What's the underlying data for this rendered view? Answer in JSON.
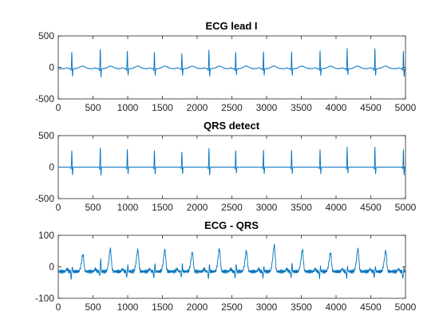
{
  "colors": {
    "trace": "#0072bd",
    "axis": "#262626",
    "background": "#ffffff"
  },
  "chart_data": [
    {
      "type": "line",
      "title": "ECG lead I",
      "xlabel": "",
      "ylabel": "",
      "xlim": [
        0,
        5000
      ],
      "ylim": [
        -500,
        500
      ],
      "xticks": [
        0,
        500,
        1000,
        1500,
        2000,
        2500,
        3000,
        3500,
        4000,
        4500,
        5000
      ],
      "yticks": [
        -500,
        0,
        500
      ],
      "grid": false,
      "legend": "none",
      "baseline": -20,
      "beats": [
        {
          "x": 195,
          "r": 270,
          "s": -130
        },
        {
          "x": 605,
          "r": 320,
          "s": -140
        },
        {
          "x": 995,
          "r": 290,
          "s": -110
        },
        {
          "x": 1385,
          "r": 270,
          "s": -115
        },
        {
          "x": 1780,
          "r": 240,
          "s": -110
        },
        {
          "x": 2170,
          "r": 300,
          "s": -130
        },
        {
          "x": 2555,
          "r": 270,
          "s": -100
        },
        {
          "x": 2955,
          "r": 280,
          "s": -110
        },
        {
          "x": 3360,
          "r": 270,
          "s": -110
        },
        {
          "x": 3770,
          "r": 280,
          "s": -110
        },
        {
          "x": 4160,
          "r": 320,
          "s": -100
        },
        {
          "x": 4560,
          "r": 320,
          "s": -110
        },
        {
          "x": 4970,
          "r": 280,
          "s": -130
        }
      ],
      "t_wave": {
        "offset": 150,
        "amplitude": 40,
        "width": 40
      }
    },
    {
      "type": "line",
      "title": "QRS detect",
      "xlabel": "",
      "ylabel": "",
      "xlim": [
        0,
        5000
      ],
      "ylim": [
        -500,
        500
      ],
      "xticks": [
        0,
        500,
        1000,
        1500,
        2000,
        2500,
        3000,
        3500,
        4000,
        4500,
        5000
      ],
      "yticks": [
        -500,
        0,
        500
      ],
      "grid": false,
      "legend": "none",
      "baseline": 0,
      "beats": [
        {
          "x": 195,
          "r": 270,
          "s": -130
        },
        {
          "x": 605,
          "r": 320,
          "s": -140
        },
        {
          "x": 995,
          "r": 290,
          "s": -110
        },
        {
          "x": 1385,
          "r": 270,
          "s": -115
        },
        {
          "x": 1780,
          "r": 240,
          "s": -110
        },
        {
          "x": 2170,
          "r": 300,
          "s": -130
        },
        {
          "x": 2555,
          "r": 270,
          "s": -100
        },
        {
          "x": 2955,
          "r": 280,
          "s": -110
        },
        {
          "x": 3360,
          "r": 270,
          "s": -110
        },
        {
          "x": 3770,
          "r": 280,
          "s": -110
        },
        {
          "x": 4160,
          "r": 320,
          "s": -100
        },
        {
          "x": 4560,
          "r": 320,
          "s": -110
        },
        {
          "x": 4970,
          "r": 280,
          "s": -130
        }
      ]
    },
    {
      "type": "line",
      "title": "ECG - QRS",
      "xlabel": "",
      "ylabel": "",
      "xlim": [
        0,
        5000
      ],
      "ylim": [
        -100,
        100
      ],
      "xticks": [
        0,
        500,
        1000,
        1500,
        2000,
        2500,
        3000,
        3500,
        4000,
        4500,
        5000
      ],
      "yticks": [
        -100,
        0,
        100
      ],
      "grid": false,
      "legend": "none",
      "baseline": -15,
      "residuals": [
        {
          "x": 195,
          "dip": -25,
          "peak": 15
        },
        {
          "x": 605,
          "dip": -15,
          "peak": 40
        },
        {
          "x": 995,
          "dip": -20,
          "peak": 20
        },
        {
          "x": 1385,
          "dip": -20,
          "peak": 25
        },
        {
          "x": 1780,
          "dip": -20,
          "peak": 20
        },
        {
          "x": 2170,
          "dip": -25,
          "peak": 20
        },
        {
          "x": 2555,
          "dip": -20,
          "peak": 25
        },
        {
          "x": 2955,
          "dip": -20,
          "peak": 15
        },
        {
          "x": 3360,
          "dip": -20,
          "peak": 25
        },
        {
          "x": 3770,
          "dip": -20,
          "peak": 15
        },
        {
          "x": 4160,
          "dip": -20,
          "peak": 15
        },
        {
          "x": 4560,
          "dip": -20,
          "peak": 15
        },
        {
          "x": 4970,
          "dip": -25,
          "peak": 10
        }
      ],
      "t_waves": [
        {
          "x": 350,
          "amp": 45
        },
        {
          "x": 745,
          "amp": 60
        },
        {
          "x": 1140,
          "amp": 58
        },
        {
          "x": 1530,
          "amp": 58
        },
        {
          "x": 1925,
          "amp": 52
        },
        {
          "x": 2315,
          "amp": 60
        },
        {
          "x": 2705,
          "amp": 55
        },
        {
          "x": 3105,
          "amp": 70
        },
        {
          "x": 3510,
          "amp": 58
        },
        {
          "x": 3915,
          "amp": 50
        },
        {
          "x": 4310,
          "amp": 60
        },
        {
          "x": 4710,
          "amp": 55
        }
      ]
    }
  ]
}
